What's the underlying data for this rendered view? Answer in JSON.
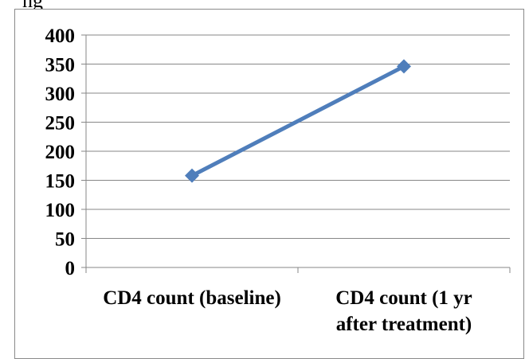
{
  "top_text": "ng",
  "chart_data": {
    "type": "line",
    "categories": [
      "CD4 count (baseline)",
      "CD4 count (1 yr after treatment)"
    ],
    "category_label_lines": [
      [
        "CD4 count (baseline)"
      ],
      [
        "CD4 count (1 yr",
        "after treatment)"
      ]
    ],
    "series": [
      {
        "values": [
          158,
          346
        ],
        "color": "#4f7ebb"
      }
    ],
    "ylim": [
      0,
      400
    ],
    "yticks": [
      0,
      50,
      100,
      150,
      200,
      250,
      300,
      350,
      400
    ],
    "grid": true,
    "gridline_color": "#878787",
    "title": "",
    "xlabel": "",
    "ylabel": ""
  }
}
